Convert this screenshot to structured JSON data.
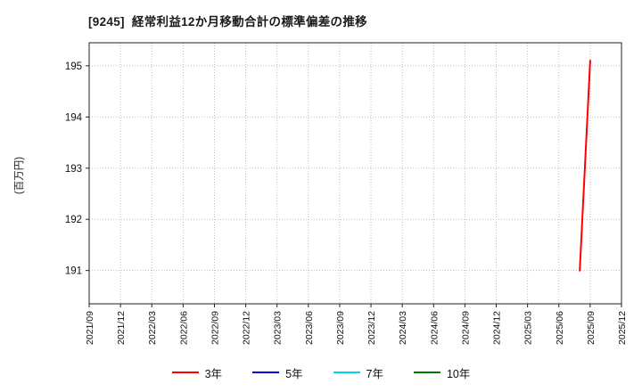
{
  "header": {
    "title": "[9245]  経常利益12か月移動合計の標準偏差の推移"
  },
  "chart_data": {
    "type": "line",
    "title": "[9245]  経常利益12か月移動合計の標準偏差の推移",
    "ylabel": "(百万円)",
    "xlabel": "",
    "grid": true,
    "grid_style": "dotted",
    "legend_position": "bottom",
    "ylim": [
      190.35,
      195.45
    ],
    "y_ticks": [
      191,
      192,
      193,
      194,
      195
    ],
    "x_ticks": [
      "2021/09",
      "2021/12",
      "2022/03",
      "2022/06",
      "2022/09",
      "2022/12",
      "2023/03",
      "2023/06",
      "2023/09",
      "2023/12",
      "2024/03",
      "2024/06",
      "2024/09",
      "2024/12",
      "2025/03",
      "2025/06",
      "2025/09",
      "2025/12"
    ],
    "series": [
      {
        "name": "3年",
        "color": "#ff0000",
        "points": [
          {
            "x": "2025/08",
            "y": 191.0
          },
          {
            "x": "2025/09",
            "y": 195.1
          }
        ]
      },
      {
        "name": "5年",
        "color": "#0000dd",
        "points": []
      },
      {
        "name": "7年",
        "color": "#00d5e8",
        "points": []
      },
      {
        "name": "10年",
        "color": "#007a00",
        "points": []
      }
    ]
  }
}
